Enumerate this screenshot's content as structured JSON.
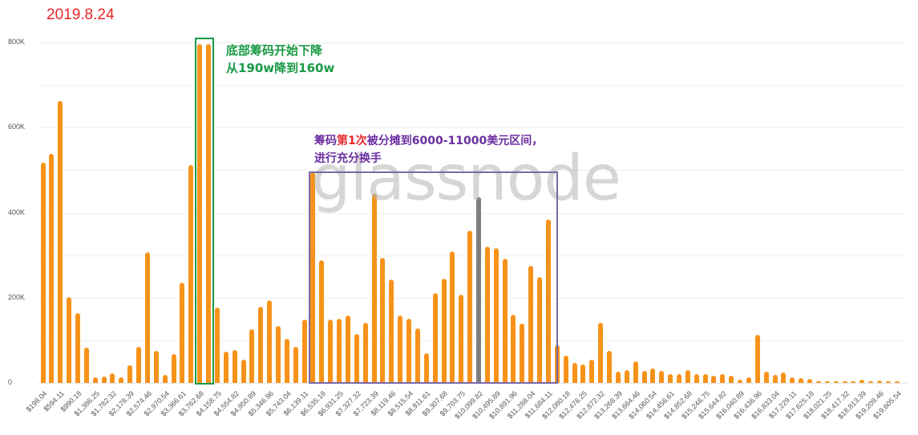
{
  "header": {
    "date": "2019.8.24"
  },
  "watermark": "glassnode",
  "annotations": {
    "green": {
      "line1": "底部筹码开始下降",
      "line2": "从190w降到160w",
      "color": "#1a9a45"
    },
    "purple": {
      "line1_pre": "筹码",
      "line1_hl": "第1次",
      "line1_post": "被分摊到6000-11000美元区间，",
      "line2": "进行充分换手",
      "color": "#6b2fa0",
      "highlight_color": "#e8262b"
    }
  },
  "colors": {
    "bar": "#f7931a",
    "highlight_bar": "#7f7f7f",
    "grid": "#f0f0f0"
  },
  "chart_data": {
    "type": "bar",
    "title": "2019.8.24",
    "xlabel": "",
    "ylabel": "",
    "ylim": [
      0,
      800000
    ],
    "yticks": [
      "0",
      "200K",
      "400K",
      "600K",
      "800K"
    ],
    "grid": true,
    "highlight_index": 50,
    "x_tick_labels": [
      "$198.04",
      "$594.11",
      "$990.18",
      "$1,386.25",
      "$1,782.32",
      "$2,178.39",
      "$2,574.46",
      "$2,970.54",
      "$3,366.61",
      "$3,762.68",
      "$4,158.75",
      "$4,554.82",
      "$4,950.89",
      "$5,346.96",
      "$5,743.04",
      "$6,139.11",
      "$6,535.18",
      "$6,931.25",
      "$7,327.32",
      "$7,723.39",
      "$8,119.46",
      "$8,515.54",
      "$8,911.61",
      "$9,307.68",
      "$9,703.75",
      "$10,099.82",
      "$10,495.89",
      "$10,891.96",
      "$11,288.04",
      "$11,684.11",
      "$12,080.18",
      "$12,476.25",
      "$12,872.32",
      "$13,268.39",
      "$13,664.46",
      "$14,060.54",
      "$14,456.61",
      "$14,852.68",
      "$15,248.75",
      "$15,644.82",
      "$16,040.89",
      "$16,436.96",
      "$16,833.04",
      "$17,229.11",
      "$17,625.18",
      "$18,021.25",
      "$18,417.32",
      "$18,813.39",
      "$19,209.46",
      "$19,605.54"
    ],
    "values_k": [
      518,
      538,
      663,
      201,
      164,
      83,
      13,
      15,
      23,
      13,
      41,
      85,
      307,
      75,
      19,
      68,
      235,
      512,
      797,
      797,
      177,
      73,
      77,
      55,
      126,
      179,
      194,
      134,
      104,
      85,
      149,
      495,
      288,
      149,
      151,
      158,
      115,
      141,
      444,
      294,
      243,
      158,
      151,
      128,
      70,
      211,
      245,
      309,
      207,
      358,
      437,
      320,
      316,
      292,
      160,
      139,
      275,
      249,
      384,
      89,
      64,
      47,
      43,
      55,
      141,
      75,
      26,
      30,
      51,
      28,
      34,
      28,
      21,
      21,
      30,
      21,
      21,
      17,
      21,
      17,
      8,
      13,
      113,
      26,
      19,
      24,
      13,
      11,
      9,
      2,
      2,
      2,
      2,
      4,
      8,
      2,
      6,
      1,
      1,
      0
    ],
    "annotation_boxes": [
      {
        "label": "底部筹码开始下降 从190w降到160w",
        "bars": [
          18,
          19
        ]
      },
      {
        "label": "筹码第1次被分摊到6000-11000美元区间，进行充分换手",
        "bars_from": 31,
        "bars_to": 58
      }
    ]
  }
}
